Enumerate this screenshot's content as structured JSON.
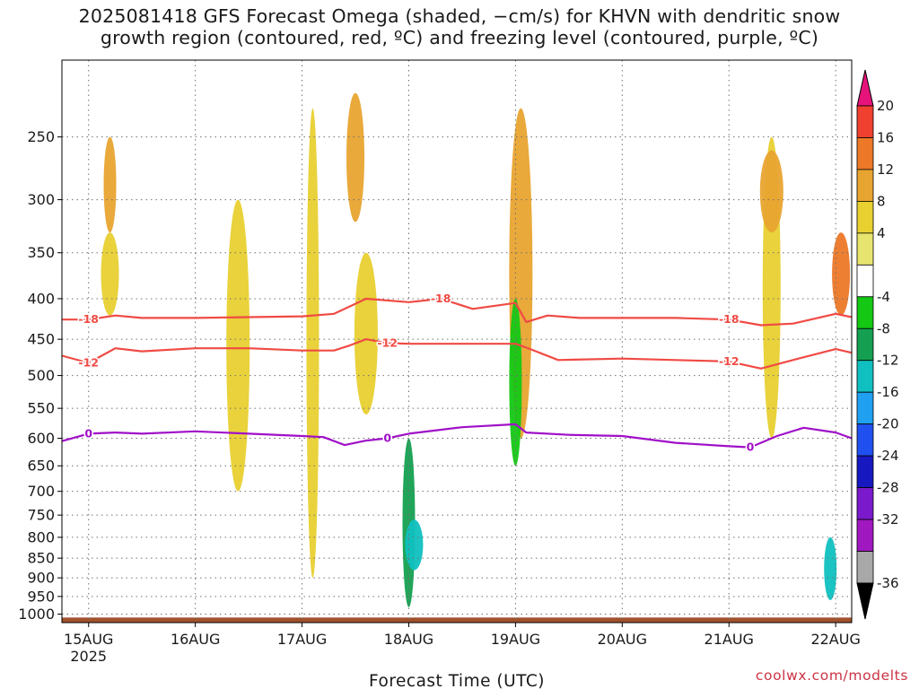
{
  "title_lines": [
    "2025081418 GFS Forecast Omega (shaded, −cm/s) for KHVN with dendritic snow",
    "growth region (contoured, red, ºC) and freezing level (contoured, purple, ºC)"
  ],
  "credit": "coolwx.com/modelts",
  "chart_data": {
    "type": "heatmap",
    "title": "2025081418 GFS Forecast Omega (shaded, −cm/s) for KHVN with dendritic snow growth region (contoured, red, ºC) and freezing level (contoured, purple, ºC)",
    "xlabel": "Forecast Time (UTC)",
    "ylabel": "",
    "x_ticks": [
      "15AUG",
      "16AUG",
      "17AUG",
      "18AUG",
      "19AUG",
      "20AUG",
      "21AUG",
      "22AUG"
    ],
    "x_year_label": "2025",
    "x_range_days": [
      -0.25,
      7.15
    ],
    "y_ticks": [
      250,
      300,
      350,
      400,
      450,
      500,
      550,
      600,
      650,
      700,
      750,
      800,
      850,
      900,
      950,
      1000
    ],
    "y_range_hPa": [
      200,
      1025
    ],
    "y_scale": "log-pressure",
    "grid": "dotted",
    "colorbar": {
      "labels": [
        "20",
        "16",
        "12",
        "8",
        "4",
        "-4",
        "-8",
        "-12",
        "-16",
        "-20",
        "-24",
        "-28",
        "-32",
        "-36"
      ],
      "colors": [
        "#e6147a",
        "#f04030",
        "#ec7828",
        "#e8a430",
        "#e8d030",
        "#e8e470",
        "#ffffff",
        "#14c814",
        "#14a050",
        "#10c0c0",
        "#20a0f0",
        "#2050f0",
        "#1818c0",
        "#7a1acc",
        "#a018c0",
        "#a8a8a8",
        "#000000"
      ]
    },
    "contours": [
      {
        "name": "-18",
        "color": "#f04a44",
        "x": [
          -0.25,
          0.0,
          0.25,
          0.5,
          1.0,
          1.5,
          2.0,
          2.3,
          2.6,
          3.0,
          3.3,
          3.6,
          4.0,
          4.1,
          4.3,
          4.6,
          5.0,
          5.5,
          6.0,
          6.3,
          6.6,
          7.0,
          7.15
        ],
        "y": [
          425,
          425,
          420,
          423,
          423,
          422,
          421,
          418,
          400,
          404,
          400,
          412,
          405,
          428,
          420,
          423,
          423,
          423,
          425,
          432,
          430,
          418,
          422
        ]
      },
      {
        "name": "-12",
        "color": "#f04a44",
        "x": [
          -0.25,
          0.0,
          0.25,
          0.5,
          1.0,
          1.5,
          2.0,
          2.3,
          2.45,
          2.6,
          2.8,
          3.0,
          3.5,
          4.0,
          4.1,
          4.4,
          5.0,
          5.5,
          6.0,
          6.3,
          6.6,
          7.0,
          7.15
        ],
        "y": [
          472,
          482,
          462,
          466,
          462,
          462,
          465,
          465,
          458,
          450,
          455,
          456,
          456,
          456,
          461,
          478,
          476,
          478,
          480,
          490,
          478,
          463,
          468
        ]
      },
      {
        "name": "0",
        "color": "#a010c8",
        "x": [
          -0.25,
          0.0,
          0.25,
          0.5,
          1.0,
          1.5,
          2.0,
          2.2,
          2.4,
          2.6,
          2.8,
          3.0,
          3.5,
          4.0,
          4.1,
          4.5,
          5.0,
          5.5,
          6.0,
          6.2,
          6.45,
          6.7,
          7.0,
          7.15
        ],
        "y": [
          605,
          592,
          590,
          592,
          588,
          592,
          596,
          598,
          612,
          604,
          600,
          592,
          581,
          576,
          590,
          594,
          596,
          608,
          614,
          616,
          596,
          582,
          590,
          600
        ]
      }
    ],
    "omega_regions": [
      {
        "x": 0.2,
        "p_top": 250,
        "p_bot": 330,
        "value": 8
      },
      {
        "x": 0.2,
        "p_top": 330,
        "p_bot": 420,
        "value": 4
      },
      {
        "x": 1.4,
        "p_top": 300,
        "p_bot": 700,
        "value": 4
      },
      {
        "x": 2.1,
        "p_top": 230,
        "p_bot": 900,
        "value": 4
      },
      {
        "x": 2.5,
        "p_top": 220,
        "p_bot": 320,
        "value": 8
      },
      {
        "x": 2.6,
        "p_top": 350,
        "p_bot": 560,
        "value": 4
      },
      {
        "x": 3.0,
        "p_top": 600,
        "p_bot": 980,
        "value": -8
      },
      {
        "x": 3.05,
        "p_top": 760,
        "p_bot": 880,
        "value": -12
      },
      {
        "x": 4.05,
        "p_top": 230,
        "p_bot": 600,
        "value": 8
      },
      {
        "x": 4.0,
        "p_top": 400,
        "p_bot": 650,
        "value": -4
      },
      {
        "x": 6.4,
        "p_top": 250,
        "p_bot": 600,
        "value": 4
      },
      {
        "x": 6.4,
        "p_top": 260,
        "p_bot": 330,
        "value": 8
      },
      {
        "x": 6.95,
        "p_top": 800,
        "p_bot": 960,
        "value": -12
      },
      {
        "x": 7.05,
        "p_top": 330,
        "p_bot": 420,
        "value": 12
      }
    ],
    "ground": {
      "p_top": 1010,
      "color": "#a0522d"
    }
  }
}
